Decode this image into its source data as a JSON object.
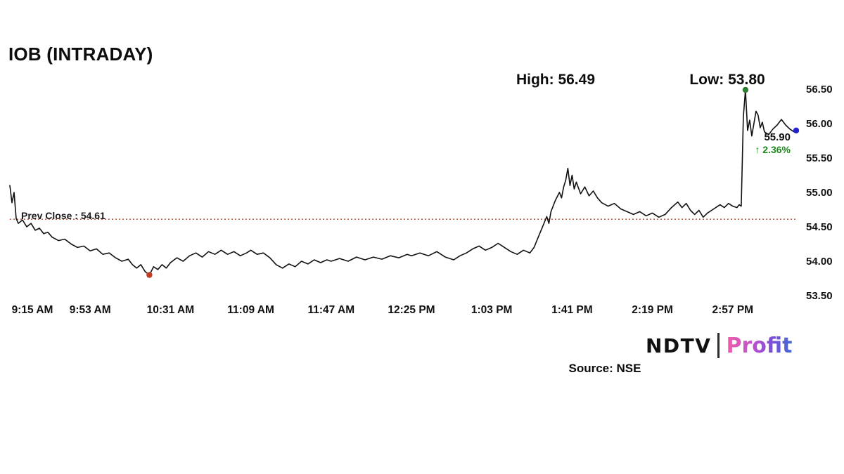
{
  "title": "IOB (INTRADAY)",
  "annotations": {
    "high_label": "High: 56.49",
    "low_label": "Low: 53.80",
    "prev_close_label": "Prev Close : 54.61",
    "last_price": "55.90",
    "change": "↑ 2.36%"
  },
  "footer": {
    "logo_ndtv": "NDTV",
    "logo_profit": "Profit",
    "source": "Source: NSE"
  },
  "colors": {
    "line": "#111111",
    "prev_close": "#b2452c",
    "change_green": "#1e8a1e",
    "marker_low": "#c23b22",
    "marker_high": "#2e7d32",
    "marker_last": "#2222cc"
  },
  "chart_data": {
    "type": "line",
    "title": "IOB (INTRADAY)",
    "x_unit": "minutes since 9:15 AM",
    "xlim": [
      0,
      372
    ],
    "ylim": [
      53.5,
      56.5
    ],
    "grid": false,
    "legend": "none",
    "x_tick_labels": [
      "9:15 AM",
      "9:53 AM",
      "10:31 AM",
      "11:09 AM",
      "11:47 AM",
      "12:25 PM",
      "1:03 PM",
      "1:41 PM",
      "2:19 PM",
      "2:57 PM"
    ],
    "x_tick_minutes": [
      0,
      38,
      76,
      114,
      152,
      190,
      228,
      266,
      304,
      342
    ],
    "y_ticks": [
      56.5,
      56.0,
      55.5,
      55.0,
      54.5,
      54.0,
      53.5
    ],
    "prev_close": 54.61,
    "high": 56.49,
    "low": 53.8,
    "last": 55.9,
    "change_pct": 2.36,
    "prev_close_color": "#b2452c",
    "series": [
      {
        "name": "IOB",
        "color": "#111111",
        "x": [
          0,
          1,
          2,
          3,
          4,
          6,
          8,
          10,
          12,
          14,
          16,
          18,
          20,
          23,
          26,
          29,
          32,
          35,
          38,
          41,
          44,
          47,
          50,
          53,
          56,
          58,
          60,
          62,
          64,
          66,
          68,
          70,
          72,
          74,
          76,
          79,
          82,
          85,
          88,
          91,
          94,
          97,
          100,
          103,
          106,
          109,
          112,
          114,
          117,
          120,
          123,
          126,
          129,
          132,
          135,
          138,
          141,
          144,
          147,
          150,
          152,
          156,
          160,
          164,
          168,
          172,
          176,
          180,
          184,
          188,
          190,
          194,
          198,
          202,
          206,
          210,
          213,
          216,
          219,
          222,
          225,
          228,
          231,
          234,
          237,
          240,
          243,
          246,
          248,
          250,
          252,
          254,
          255,
          256,
          258,
          260,
          261,
          262,
          263,
          264,
          265,
          266,
          267,
          268,
          270,
          272,
          274,
          276,
          278,
          280,
          283,
          286,
          289,
          292,
          295,
          298,
          301,
          304,
          307,
          310,
          313,
          316,
          318,
          320,
          322,
          324,
          326,
          328,
          330,
          333,
          336,
          338,
          340,
          342,
          344,
          345,
          346,
          347,
          348,
          349,
          350,
          351,
          352,
          353,
          354,
          355,
          356,
          357,
          359,
          361,
          363,
          365,
          367,
          369,
          371,
          372
        ],
        "y": [
          55.1,
          54.85,
          55.0,
          54.62,
          54.55,
          54.6,
          54.5,
          54.55,
          54.45,
          54.48,
          54.4,
          54.42,
          54.35,
          54.3,
          54.32,
          54.25,
          54.2,
          54.22,
          54.15,
          54.18,
          54.1,
          54.12,
          54.05,
          54.0,
          54.03,
          53.95,
          53.9,
          53.95,
          53.85,
          53.8,
          53.92,
          53.88,
          53.95,
          53.9,
          53.98,
          54.05,
          54.0,
          54.08,
          54.12,
          54.06,
          54.14,
          54.1,
          54.16,
          54.1,
          54.14,
          54.08,
          54.12,
          54.16,
          54.1,
          54.12,
          54.05,
          53.95,
          53.9,
          53.96,
          53.92,
          54.0,
          53.96,
          54.02,
          53.98,
          54.02,
          54.0,
          54.04,
          54.0,
          54.06,
          54.02,
          54.06,
          54.03,
          54.08,
          54.05,
          54.1,
          54.08,
          54.12,
          54.08,
          54.14,
          54.06,
          54.02,
          54.08,
          54.12,
          54.18,
          54.22,
          54.16,
          54.2,
          54.26,
          54.2,
          54.14,
          54.1,
          54.16,
          54.12,
          54.2,
          54.35,
          54.5,
          54.65,
          54.55,
          54.72,
          54.88,
          55.0,
          54.92,
          55.08,
          55.18,
          55.35,
          55.1,
          55.25,
          55.05,
          55.15,
          54.98,
          55.08,
          54.95,
          55.02,
          54.92,
          54.85,
          54.8,
          54.84,
          54.76,
          54.72,
          54.68,
          54.72,
          54.66,
          54.7,
          54.64,
          54.68,
          54.78,
          54.86,
          54.78,
          54.84,
          54.74,
          54.68,
          54.74,
          54.64,
          54.7,
          54.76,
          54.82,
          54.78,
          54.84,
          54.8,
          54.78,
          54.82,
          54.8,
          56.1,
          56.49,
          55.9,
          56.05,
          55.82,
          56.0,
          56.18,
          56.12,
          55.94,
          56.02,
          55.88,
          55.84,
          55.92,
          55.98,
          56.06,
          55.98,
          55.92,
          55.88,
          55.9
        ]
      }
    ],
    "markers": [
      {
        "name": "low",
        "x": 66,
        "y": 53.8,
        "color": "#c23b22"
      },
      {
        "name": "high",
        "x": 348,
        "y": 56.49,
        "color": "#2e7d32"
      },
      {
        "name": "last",
        "x": 372,
        "y": 55.9,
        "color": "#2222cc"
      }
    ]
  }
}
